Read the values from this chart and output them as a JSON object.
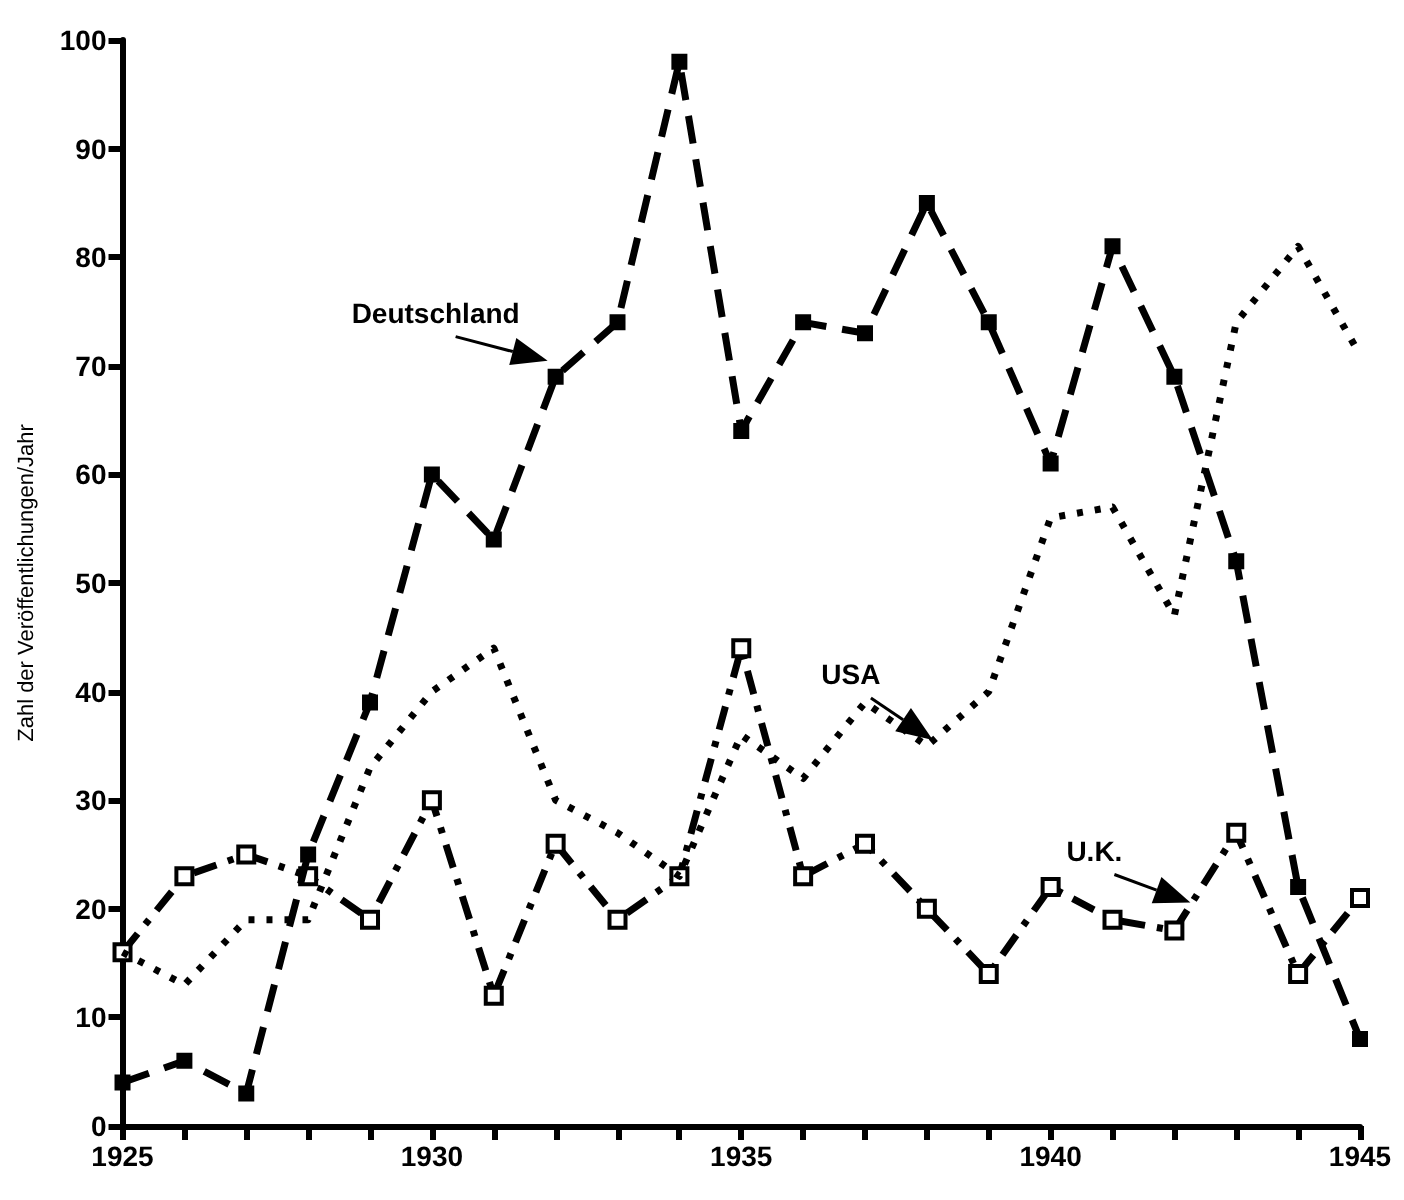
{
  "chart_data": {
    "type": "line",
    "ylabel": "Zahl der Veröffentlichungen/Jahr",
    "x": [
      1925,
      1926,
      1927,
      1928,
      1929,
      1930,
      1931,
      1932,
      1933,
      1934,
      1935,
      1936,
      1937,
      1938,
      1939,
      1940,
      1941,
      1942,
      1943,
      1944,
      1945
    ],
    "series": [
      {
        "name": "Deutschland",
        "color": "#000000",
        "line_style": "dashed",
        "marker": "square",
        "values": [
          4,
          6,
          3,
          25,
          39,
          60,
          54,
          69,
          74,
          98,
          64,
          74,
          73,
          85,
          74,
          61,
          81,
          69,
          52,
          22,
          8
        ]
      },
      {
        "name": "USA",
        "color": "#000000",
        "line_style": "dotted",
        "marker": "none",
        "values": [
          16,
          13,
          19,
          19,
          33,
          40,
          44,
          30,
          27,
          23,
          36,
          32,
          39,
          35,
          40,
          56,
          57,
          47,
          74,
          81,
          71
        ]
      },
      {
        "name": "U.K.",
        "color": "#000000",
        "line_style": "dashed",
        "marker": "square",
        "values": [
          16,
          23,
          25,
          23,
          19,
          30,
          12,
          26,
          19,
          23,
          44,
          23,
          26,
          20,
          14,
          22,
          19,
          18,
          27,
          14,
          21
        ]
      }
    ],
    "xlim": [
      1925,
      1945
    ],
    "xticks": [
      1925,
      {
        "value": 1926,
        "label": null
      },
      {
        "value": 1927,
        "label": null
      },
      {
        "value": 1928,
        "label": null
      },
      {
        "value": 1929,
        "label": null
      },
      1930,
      {
        "value": 1931,
        "label": null
      },
      {
        "value": 1932,
        "label": null
      },
      {
        "value": 1933,
        "label": null
      },
      {
        "value": 1934,
        "label": null
      },
      1935,
      {
        "value": 1936,
        "label": null
      },
      {
        "value": 1937,
        "label": null
      },
      {
        "value": 1938,
        "label": null
      },
      {
        "value": 1939,
        "label": null
      },
      1940,
      {
        "value": 1941,
        "label": null
      },
      {
        "value": 1942,
        "label": null
      },
      {
        "value": 1943,
        "label": null
      },
      {
        "value": 1944,
        "label": null
      },
      1945
    ],
    "ylim": [
      0,
      100
    ],
    "yticks": [
      0,
      10,
      20,
      30,
      40,
      50,
      60,
      70,
      80,
      90,
      100
    ],
    "grid": false,
    "legend": false
  }
}
